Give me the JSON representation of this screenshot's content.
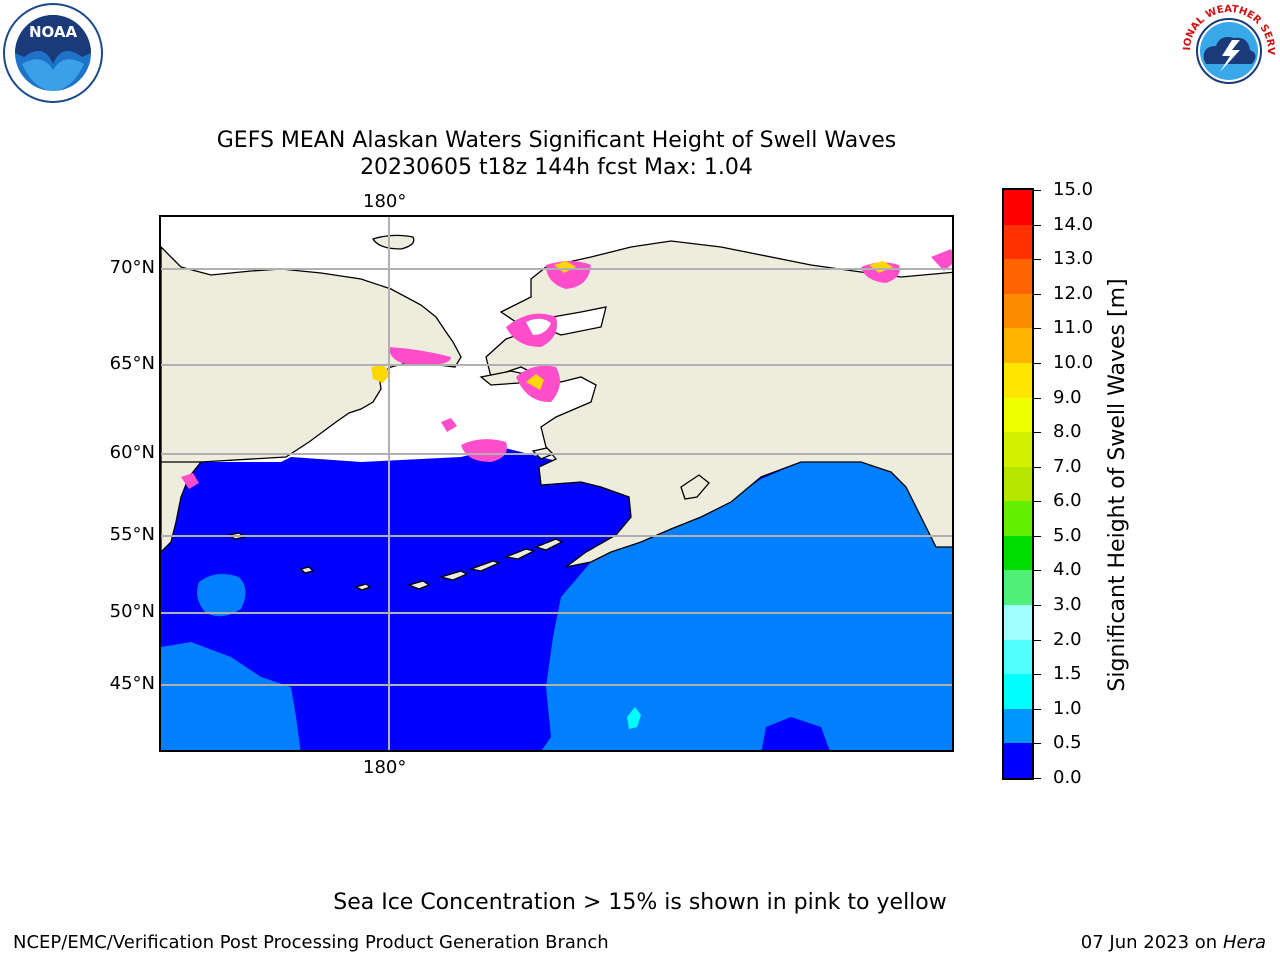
{
  "title": {
    "line1": "GEFS MEAN Alaskan Waters Significant Height of Swell Waves",
    "line2": "20230605 t18z 144h fcst   Max: 1.04"
  },
  "logos": {
    "left": {
      "icon": "noaa-logo",
      "text": "NOAA"
    },
    "right": {
      "icon": "nws-logo",
      "text": "NATIONAL WEATHER SERVICE"
    }
  },
  "map": {
    "lon_label_top": "180°",
    "lon_label_bottom": "180°",
    "lat_labels": [
      "70°N",
      "65°N",
      "60°N",
      "55°N",
      "50°N",
      "45°N"
    ],
    "colors": {
      "land": "#eeecdc",
      "ocean_low": "#0000ff",
      "ocean_mid": "#0080ff",
      "ice": "#ff4dcc",
      "ice_yellow": "#ffd700",
      "grid": "#b0b0b0"
    }
  },
  "colorbar": {
    "title": "Significant Height of Swell Waves [m]",
    "ticks": [
      "15.0",
      "14.0",
      "13.0",
      "12.0",
      "11.0",
      "10.0",
      "9.0",
      "8.0",
      "7.0",
      "6.0",
      "5.0",
      "4.0",
      "3.0",
      "2.0",
      "1.5",
      "1.0",
      "0.5",
      "0.0"
    ],
    "colors": [
      "#ff0000",
      "#ff3200",
      "#ff6400",
      "#ff8c00",
      "#ffb400",
      "#ffe600",
      "#f0ff00",
      "#d2f000",
      "#b4e600",
      "#64f000",
      "#00dc00",
      "#50f078",
      "#a0ffff",
      "#50ffff",
      "#00ffff",
      "#0096ff",
      "#0000ff"
    ]
  },
  "footer": {
    "note": "Sea Ice Concentration > 15% is shown in pink to yellow",
    "left": "NCEP/EMC/Verification Post Processing Product Generation Branch",
    "right_date": "07 Jun 2023 on",
    "right_host": "Hera"
  }
}
